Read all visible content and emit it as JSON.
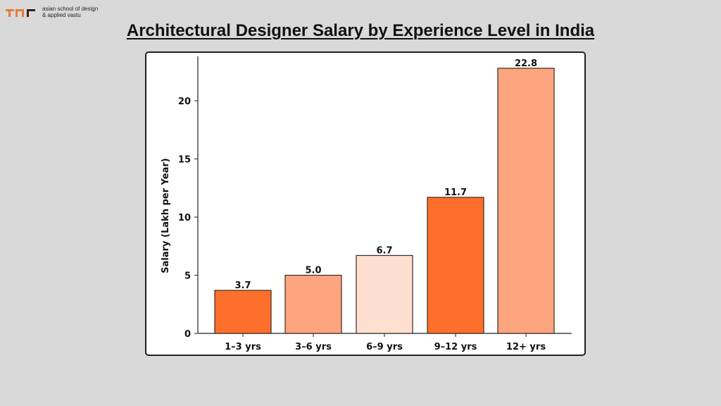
{
  "logo": {
    "line1": "asian school of design",
    "line2": "& applied vastu"
  },
  "title": "Architectural Designer Salary by Experience Level in India",
  "chart_data": {
    "type": "bar",
    "title": "Architectural Designer Salary by Experience Level in India",
    "xlabel": "",
    "ylabel": "Salary (Lakh per Year)",
    "categories": [
      "1-3 yrs",
      "3-6 yrs",
      "6-9 yrs",
      "9-12 yrs",
      "12+ yrs"
    ],
    "values": [
      3.7,
      5.0,
      6.7,
      11.7,
      22.8
    ],
    "value_labels": [
      "3.7",
      "5.0",
      "6.7",
      "11.7",
      "22.8"
    ],
    "colors": [
      "#ff6f2c",
      "#fca57e",
      "#ffdfcf",
      "#ff6f2c",
      "#fca57e"
    ],
    "yticks": [
      0,
      5,
      10,
      15,
      20
    ],
    "ylim": [
      0,
      23.9
    ],
    "grid": false,
    "legend": null
  }
}
